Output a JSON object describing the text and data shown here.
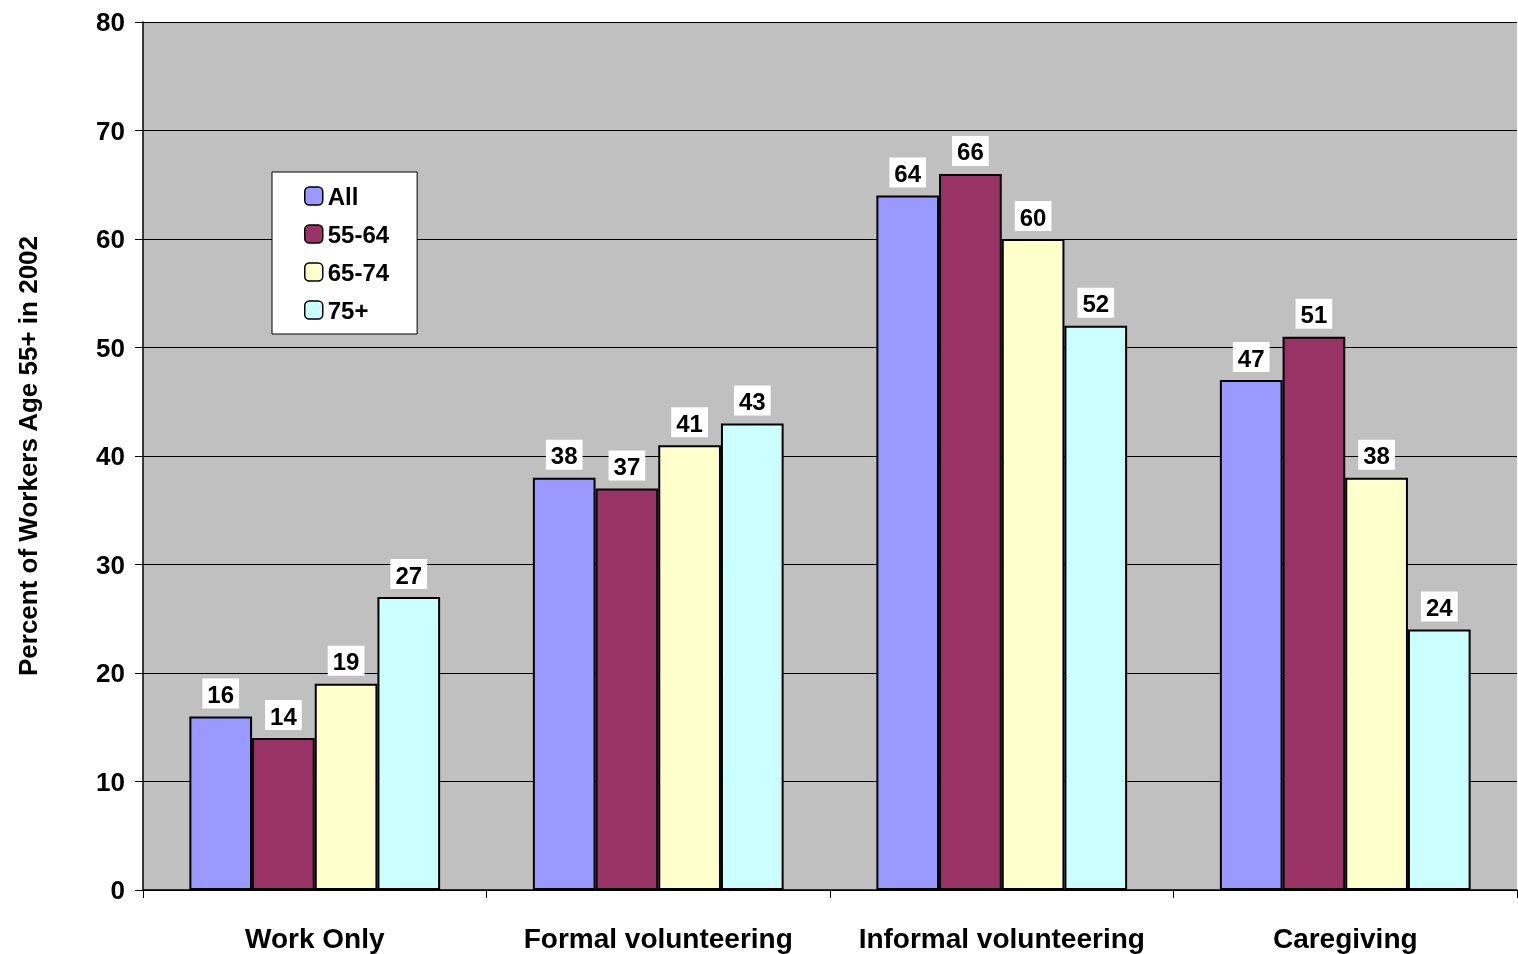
{
  "chart_data": {
    "type": "bar",
    "ylabel": "Percent of Workers Age 55+ in 2002",
    "categories": [
      "Work Only",
      "Formal volunteering",
      "Informal volunteering",
      "Caregiving"
    ],
    "series": [
      {
        "name": "All",
        "color": "#9999ff",
        "values": [
          16,
          38,
          64,
          47
        ]
      },
      {
        "name": "55-64",
        "color": "#993366",
        "values": [
          14,
          37,
          66,
          51
        ]
      },
      {
        "name": "65-74",
        "color": "#ffffcc",
        "values": [
          19,
          41,
          60,
          38
        ]
      },
      {
        "name": "75+",
        "color": "#ccffff",
        "values": [
          27,
          43,
          52,
          24
        ]
      }
    ],
    "ylim": [
      0,
      80
    ],
    "yticks": [
      0,
      10,
      20,
      30,
      40,
      50,
      60,
      70,
      80
    ],
    "grid": "y",
    "legend": "top left",
    "data_labels": true
  }
}
